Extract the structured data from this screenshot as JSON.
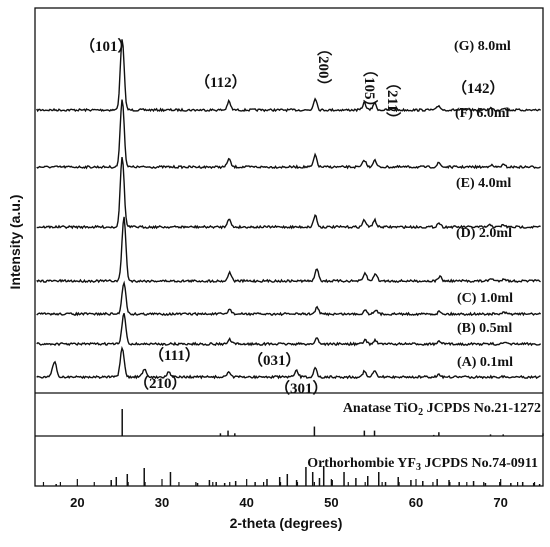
{
  "chart_data": {
    "type": "line",
    "xlabel": "2-theta (degrees)",
    "ylabel": "Intensity (a.u.)",
    "xlim": [
      15,
      75
    ],
    "xticks": [
      20,
      30,
      40,
      50,
      60,
      70
    ],
    "series": [
      {
        "name": "(G) 8.0ml",
        "label": "(G)  8.0ml",
        "peaks": [
          [
            25.3,
            1.0
          ],
          [
            37.9,
            0.12
          ],
          [
            48.1,
            0.17
          ],
          [
            53.9,
            0.1
          ],
          [
            55.1,
            0.1
          ],
          [
            62.7,
            0.06
          ],
          [
            68.8,
            0.03
          ],
          [
            70.3,
            0.03
          ]
        ]
      },
      {
        "name": "(F) 6.0ml",
        "label": "(F)  6.0ml",
        "peaks": [
          [
            25.3,
            1.0
          ],
          [
            37.9,
            0.12
          ],
          [
            48.1,
            0.17
          ],
          [
            53.9,
            0.1
          ],
          [
            55.1,
            0.1
          ],
          [
            62.7,
            0.06
          ],
          [
            68.8,
            0.03
          ],
          [
            70.3,
            0.03
          ]
        ]
      },
      {
        "name": "(E) 4.0ml",
        "label": "(E)  4.0ml",
        "peaks": [
          [
            25.3,
            1.0
          ],
          [
            37.9,
            0.12
          ],
          [
            48.1,
            0.17
          ],
          [
            53.9,
            0.1
          ],
          [
            55.1,
            0.1
          ],
          [
            62.7,
            0.06
          ],
          [
            68.8,
            0.03
          ],
          [
            70.3,
            0.03
          ]
        ]
      },
      {
        "name": "(D) 2.0ml",
        "label": "(D)  2.0ml",
        "peaks": [
          [
            25.5,
            1.0
          ],
          [
            38.0,
            0.14
          ],
          [
            48.3,
            0.2
          ],
          [
            54.0,
            0.12
          ],
          [
            55.2,
            0.12
          ],
          [
            62.8,
            0.07
          ],
          [
            68.9,
            0.04
          ],
          [
            70.4,
            0.04
          ]
        ]
      },
      {
        "name": "(C) 1.0ml",
        "label": "(C)  1.0ml",
        "peaks": [
          [
            25.5,
            1.0
          ],
          [
            38.0,
            0.15
          ],
          [
            48.3,
            0.2
          ],
          [
            54.0,
            0.13
          ],
          [
            55.2,
            0.13
          ],
          [
            62.8,
            0.08
          ],
          [
            70.4,
            0.04
          ]
        ]
      },
      {
        "name": "(B) 0.5ml",
        "label": "(B)  0.5ml",
        "peaks": [
          [
            25.5,
            1.0
          ],
          [
            38.0,
            0.15
          ],
          [
            48.3,
            0.2
          ],
          [
            54.0,
            0.13
          ],
          [
            55.2,
            0.13
          ],
          [
            62.8,
            0.08
          ],
          [
            70.4,
            0.04
          ]
        ]
      },
      {
        "name": "(A) 0.1ml",
        "label": "(A)  0.1ml",
        "peaks": [
          [
            17.3,
            0.55
          ],
          [
            25.3,
            1.0
          ],
          [
            27.9,
            0.3
          ],
          [
            30.8,
            0.2
          ],
          [
            37.9,
            0.2
          ],
          [
            45.9,
            0.22
          ],
          [
            48.1,
            0.3
          ],
          [
            53.9,
            0.2
          ],
          [
            55.1,
            0.2
          ],
          [
            62.7,
            0.1
          ]
        ]
      }
    ],
    "reference_patterns": [
      {
        "name": "Anatase TiO2 JCPDS No.21-1272",
        "lines": [
          [
            25.3,
            100
          ],
          [
            36.9,
            10
          ],
          [
            37.8,
            20
          ],
          [
            38.6,
            10
          ],
          [
            48.0,
            35
          ],
          [
            53.9,
            20
          ],
          [
            55.1,
            20
          ],
          [
            62.1,
            4
          ],
          [
            62.7,
            14
          ],
          [
            68.8,
            6
          ],
          [
            70.3,
            6
          ],
          [
            75.0,
            10
          ]
        ]
      },
      {
        "name": "Orthorhombic YF3 JCPDS No.74-0911",
        "lines": [
          [
            17.5,
            10
          ],
          [
            24.0,
            30
          ],
          [
            24.6,
            45
          ],
          [
            25.9,
            60
          ],
          [
            27.9,
            90
          ],
          [
            31.0,
            70
          ],
          [
            34.2,
            15
          ],
          [
            35.6,
            30
          ],
          [
            36.4,
            20
          ],
          [
            37.4,
            15
          ],
          [
            38.7,
            25
          ],
          [
            41.0,
            20
          ],
          [
            42.4,
            35
          ],
          [
            43.9,
            45
          ],
          [
            44.8,
            60
          ],
          [
            45.9,
            30
          ],
          [
            47.0,
            95
          ],
          [
            47.8,
            70
          ],
          [
            48.6,
            40
          ],
          [
            49.1,
            100
          ],
          [
            50.1,
            30
          ],
          [
            51.5,
            70
          ],
          [
            52.9,
            40
          ],
          [
            54.3,
            50
          ],
          [
            55.6,
            70
          ],
          [
            56.4,
            20
          ],
          [
            57.9,
            45
          ],
          [
            59.4,
            30
          ],
          [
            60.8,
            25
          ],
          [
            62.5,
            35
          ],
          [
            63.9,
            30
          ],
          [
            65.1,
            20
          ],
          [
            66.8,
            25
          ],
          [
            68.2,
            15
          ],
          [
            69.9,
            20
          ],
          [
            71.2,
            15
          ],
          [
            72.6,
            20
          ],
          [
            73.9,
            15
          ],
          [
            74.6,
            10
          ]
        ]
      }
    ],
    "annotations": [
      {
        "text": "（101）"
      },
      {
        "text": "（112）"
      },
      {
        "text": "（200）"
      },
      {
        "text": "（105）"
      },
      {
        "text": "（211）"
      },
      {
        "text": "（142）"
      },
      {
        "text": "（111）"
      },
      {
        "text": "（210）"
      },
      {
        "text": "（031）"
      },
      {
        "text": "（301）"
      }
    ],
    "ref_label_1": {
      "prefix": "Anatase TiO",
      "sub": "2",
      "suffix": " JCPDS No.21-1272"
    },
    "ref_label_2": {
      "prefix": "Orthorhombie YF",
      "sub": "3",
      "suffix": " JCPDS No.74-0911"
    }
  }
}
